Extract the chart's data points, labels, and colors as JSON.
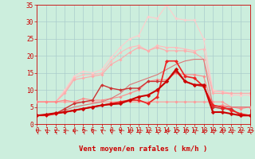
{
  "xlabel": "Vent moyen/en rafales ( km/h )",
  "xlim": [
    0,
    23
  ],
  "ylim": [
    0,
    35
  ],
  "xticks": [
    0,
    1,
    2,
    3,
    4,
    5,
    6,
    7,
    8,
    9,
    10,
    11,
    12,
    13,
    14,
    15,
    16,
    17,
    18,
    19,
    20,
    21,
    22,
    23
  ],
  "yticks": [
    0,
    5,
    10,
    15,
    20,
    25,
    30,
    35
  ],
  "background_color": "#cceedd",
  "grid_color": "#aacccc",
  "series": [
    {
      "x": [
        0,
        1,
        2,
        3,
        4,
        5,
        6,
        7,
        8,
        9,
        10,
        11,
        12,
        13,
        14,
        15,
        16,
        17,
        18,
        19,
        20,
        21,
        22,
        23
      ],
      "y": [
        6.5,
        6.5,
        6.5,
        10.0,
        14.0,
        15.5,
        15.0,
        16.0,
        19.5,
        22.5,
        25.0,
        26.0,
        31.5,
        31.0,
        35.0,
        31.0,
        30.5,
        30.5,
        25.0,
        10.0,
        9.5,
        8.5,
        8.5,
        8.5
      ],
      "color": "#ffcccc",
      "linewidth": 0.8,
      "marker": "D",
      "markersize": 1.8,
      "zorder": 2
    },
    {
      "x": [
        0,
        1,
        2,
        3,
        4,
        5,
        6,
        7,
        8,
        9,
        10,
        11,
        12,
        13,
        14,
        15,
        16,
        17,
        18,
        19,
        20,
        21,
        22,
        23
      ],
      "y": [
        6.5,
        6.5,
        6.5,
        9.5,
        13.5,
        14.5,
        14.5,
        15.0,
        18.5,
        21.0,
        22.5,
        23.0,
        21.5,
        23.0,
        22.5,
        22.5,
        22.0,
        21.5,
        22.0,
        9.5,
        9.5,
        9.0,
        9.0,
        9.0
      ],
      "color": "#ffbbbb",
      "linewidth": 0.8,
      "marker": "D",
      "markersize": 1.8,
      "zorder": 2
    },
    {
      "x": [
        0,
        1,
        2,
        3,
        4,
        5,
        6,
        7,
        8,
        9,
        10,
        11,
        12,
        13,
        14,
        15,
        16,
        17,
        18,
        19,
        20,
        21,
        22,
        23
      ],
      "y": [
        6.5,
        6.5,
        6.5,
        9.0,
        13.0,
        13.5,
        14.0,
        14.5,
        17.5,
        19.0,
        21.0,
        22.5,
        21.5,
        22.5,
        21.5,
        21.5,
        21.5,
        21.0,
        19.0,
        9.0,
        9.0,
        9.0,
        9.0,
        9.0
      ],
      "color": "#ffaaaa",
      "linewidth": 0.8,
      "marker": "D",
      "markersize": 1.8,
      "zorder": 2
    },
    {
      "x": [
        0,
        1,
        2,
        3,
        4,
        5,
        6,
        7,
        8,
        9,
        10,
        11,
        12,
        13,
        14,
        15,
        16,
        17,
        18,
        19,
        20,
        21,
        22,
        23
      ],
      "y": [
        6.5,
        6.5,
        6.5,
        6.5,
        6.5,
        6.5,
        6.5,
        6.5,
        6.5,
        6.5,
        6.5,
        6.5,
        6.5,
        6.5,
        6.5,
        6.5,
        6.5,
        6.5,
        6.5,
        6.5,
        6.5,
        5.0,
        5.0,
        5.0
      ],
      "color": "#ff9999",
      "linewidth": 0.8,
      "marker": "D",
      "markersize": 1.8,
      "zorder": 3
    },
    {
      "x": [
        0,
        1,
        2,
        3,
        4,
        5,
        6,
        7,
        8,
        9,
        10,
        11,
        12,
        13,
        14,
        15,
        16,
        17,
        18,
        19,
        20,
        21,
        22,
        23
      ],
      "y": [
        6.5,
        6.5,
        6.5,
        7.0,
        6.5,
        7.5,
        7.0,
        7.0,
        7.5,
        8.0,
        9.0,
        10.0,
        12.5,
        13.0,
        13.0,
        15.0,
        14.5,
        14.5,
        14.0,
        5.0,
        5.5,
        5.0,
        4.5,
        5.0
      ],
      "color": "#ff8888",
      "linewidth": 0.8,
      "marker": "D",
      "markersize": 1.8,
      "zorder": 3
    },
    {
      "x": [
        0,
        1,
        2,
        3,
        4,
        5,
        6,
        7,
        8,
        9,
        10,
        11,
        12,
        13,
        14,
        15,
        16,
        17,
        18,
        19,
        20,
        21,
        22,
        23
      ],
      "y": [
        2.5,
        2.8,
        3.2,
        4.0,
        5.0,
        5.5,
        6.0,
        6.5,
        7.5,
        9.0,
        11.5,
        12.5,
        13.5,
        14.5,
        16.0,
        17.5,
        18.5,
        19.0,
        19.0,
        5.5,
        5.0,
        5.0,
        5.0,
        5.0
      ],
      "color": "#dd7777",
      "linewidth": 0.8,
      "marker": null,
      "markersize": 0,
      "zorder": 3
    },
    {
      "x": [
        0,
        1,
        2,
        3,
        4,
        5,
        6,
        7,
        8,
        9,
        10,
        11,
        12,
        13,
        14,
        15,
        16,
        17,
        18,
        19,
        20,
        21,
        22,
        23
      ],
      "y": [
        2.5,
        2.5,
        3.0,
        4.5,
        6.0,
        6.5,
        7.0,
        11.5,
        10.5,
        10.0,
        10.5,
        10.5,
        12.5,
        12.5,
        12.5,
        15.5,
        12.5,
        11.5,
        11.0,
        5.0,
        4.5,
        4.5,
        2.5,
        2.5
      ],
      "color": "#cc3333",
      "linewidth": 1.0,
      "marker": "D",
      "markersize": 2.0,
      "zorder": 4
    },
    {
      "x": [
        0,
        1,
        2,
        3,
        4,
        5,
        6,
        7,
        8,
        9,
        10,
        11,
        12,
        13,
        14,
        15,
        16,
        17,
        18,
        19,
        20,
        21,
        22,
        23
      ],
      "y": [
        2.5,
        2.5,
        3.0,
        3.5,
        4.0,
        4.5,
        5.0,
        5.5,
        6.0,
        6.5,
        7.0,
        7.0,
        6.0,
        8.0,
        18.5,
        18.5,
        14.0,
        13.5,
        11.0,
        5.5,
        5.0,
        4.0,
        3.0,
        2.5
      ],
      "color": "#ee2222",
      "linewidth": 1.2,
      "marker": "D",
      "markersize": 2.2,
      "zorder": 5
    },
    {
      "x": [
        0,
        1,
        2,
        3,
        4,
        5,
        6,
        7,
        8,
        9,
        10,
        11,
        12,
        13,
        14,
        15,
        16,
        17,
        18,
        19,
        20,
        21,
        22,
        23
      ],
      "y": [
        2.5,
        2.8,
        3.2,
        3.5,
        4.0,
        4.5,
        5.0,
        5.5,
        5.8,
        6.0,
        7.0,
        8.0,
        8.5,
        10.0,
        12.5,
        16.0,
        12.5,
        11.5,
        11.5,
        3.5,
        3.5,
        3.0,
        2.5,
        2.5
      ],
      "color": "#cc0000",
      "linewidth": 1.5,
      "marker": "D",
      "markersize": 2.5,
      "zorder": 6
    }
  ],
  "tick_color": "#cc0000",
  "axis_color": "#cc0000",
  "label_color": "#cc0000",
  "label_fontsize": 6.5,
  "tick_fontsize": 5.5
}
